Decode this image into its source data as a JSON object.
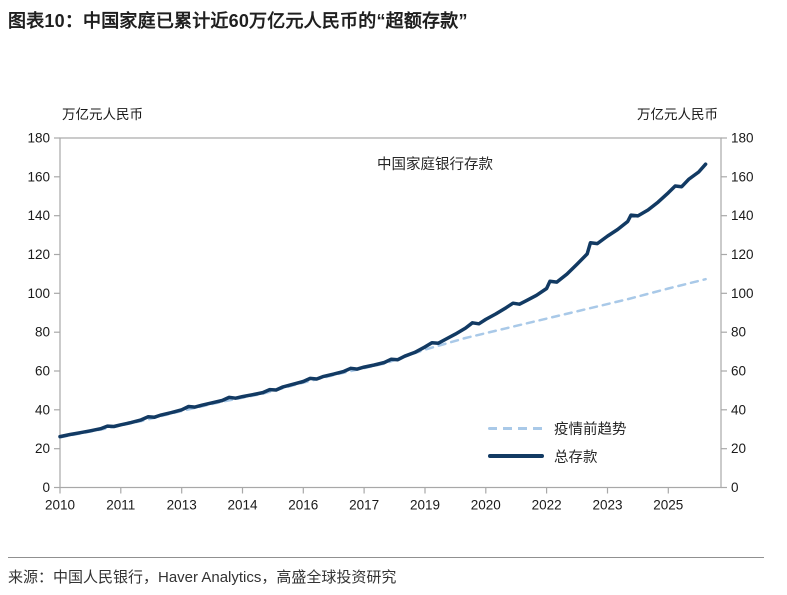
{
  "header": {
    "title": "图表10：中国家庭已累计近60万亿元人民币的“超额存款”"
  },
  "chart_data": {
    "type": "line",
    "title": "图表10：中国家庭已累计近60万亿元人民币的“超额存款”",
    "left_axis_unit": "万亿元人民币",
    "right_axis_unit": "万亿元人民币",
    "annotation": "中国家庭银行存款",
    "axis_color": "#a8a8a8",
    "grid": false,
    "legend_position": "inside-lower-right",
    "ylim": [
      0,
      180
    ],
    "yticks": [
      0,
      20,
      40,
      60,
      80,
      100,
      120,
      140,
      160,
      180
    ],
    "x_range": [
      2010,
      2026.3
    ],
    "xticks": [
      {
        "pos": 2010.0,
        "label": "2010"
      },
      {
        "pos": 2011.5,
        "label": "2011"
      },
      {
        "pos": 2013.0,
        "label": "2013"
      },
      {
        "pos": 2014.5,
        "label": "2014"
      },
      {
        "pos": 2016.0,
        "label": "2016"
      },
      {
        "pos": 2017.5,
        "label": "2017"
      },
      {
        "pos": 2019.0,
        "label": "2019"
      },
      {
        "pos": 2020.5,
        "label": "2020"
      },
      {
        "pos": 2022.0,
        "label": "2022"
      },
      {
        "pos": 2023.5,
        "label": "2023"
      },
      {
        "pos": 2025.0,
        "label": "2025"
      }
    ],
    "series": [
      {
        "name": "疫情前趋势",
        "style": "dashed",
        "color": "#a9c9e8",
        "width": 2.5,
        "points": [
          [
            2010.0,
            25.8
          ],
          [
            2011.0,
            29.8
          ],
          [
            2012.0,
            34.2
          ],
          [
            2013.0,
            39.4
          ],
          [
            2014.0,
            44.2
          ],
          [
            2015.0,
            48.3
          ],
          [
            2016.0,
            54.0
          ],
          [
            2017.0,
            59.2
          ],
          [
            2018.0,
            63.8
          ],
          [
            2019.0,
            71.0
          ],
          [
            2020.0,
            77.0
          ],
          [
            2021.0,
            82.0
          ],
          [
            2022.0,
            87.0
          ],
          [
            2023.0,
            92.0
          ],
          [
            2024.0,
            97.0
          ],
          [
            2025.0,
            102.5
          ],
          [
            2025.92,
            107.3
          ]
        ]
      },
      {
        "name": "总存款",
        "style": "solid",
        "color": "#123a63",
        "width": 3.5,
        "points": [
          [
            2010.0,
            26.2
          ],
          [
            2010.25,
            27.3
          ],
          [
            2010.5,
            28.2
          ],
          [
            2010.75,
            29.2
          ],
          [
            2011.0,
            30.3
          ],
          [
            2011.17,
            31.6
          ],
          [
            2011.33,
            31.4
          ],
          [
            2011.5,
            32.3
          ],
          [
            2011.75,
            33.4
          ],
          [
            2012.0,
            34.8
          ],
          [
            2012.17,
            36.4
          ],
          [
            2012.33,
            36.2
          ],
          [
            2012.5,
            37.4
          ],
          [
            2012.75,
            38.6
          ],
          [
            2013.0,
            40.0
          ],
          [
            2013.17,
            41.7
          ],
          [
            2013.33,
            41.4
          ],
          [
            2013.5,
            42.4
          ],
          [
            2013.75,
            43.6
          ],
          [
            2014.0,
            44.8
          ],
          [
            2014.17,
            46.4
          ],
          [
            2014.33,
            46.0
          ],
          [
            2014.5,
            46.8
          ],
          [
            2014.75,
            47.8
          ],
          [
            2015.0,
            48.9
          ],
          [
            2015.17,
            50.4
          ],
          [
            2015.33,
            50.2
          ],
          [
            2015.5,
            51.8
          ],
          [
            2015.75,
            53.2
          ],
          [
            2016.0,
            54.6
          ],
          [
            2016.17,
            56.2
          ],
          [
            2016.33,
            55.9
          ],
          [
            2016.5,
            57.2
          ],
          [
            2016.75,
            58.4
          ],
          [
            2017.0,
            59.8
          ],
          [
            2017.17,
            61.4
          ],
          [
            2017.33,
            61.0
          ],
          [
            2017.5,
            62.0
          ],
          [
            2017.75,
            63.1
          ],
          [
            2018.0,
            64.4
          ],
          [
            2018.17,
            66.1
          ],
          [
            2018.33,
            65.8
          ],
          [
            2018.5,
            67.6
          ],
          [
            2018.75,
            69.6
          ],
          [
            2019.0,
            72.4
          ],
          [
            2019.17,
            74.6
          ],
          [
            2019.33,
            74.3
          ],
          [
            2019.5,
            76.2
          ],
          [
            2019.75,
            79.0
          ],
          [
            2020.0,
            82.1
          ],
          [
            2020.17,
            84.8
          ],
          [
            2020.33,
            84.3
          ],
          [
            2020.5,
            86.6
          ],
          [
            2020.75,
            89.4
          ],
          [
            2021.0,
            92.6
          ],
          [
            2021.17,
            94.9
          ],
          [
            2021.33,
            94.4
          ],
          [
            2021.5,
            96.2
          ],
          [
            2021.75,
            99.0
          ],
          [
            2022.0,
            102.5
          ],
          [
            2022.08,
            106.2
          ],
          [
            2022.25,
            105.8
          ],
          [
            2022.5,
            109.9
          ],
          [
            2022.75,
            115.0
          ],
          [
            2023.0,
            120.3
          ],
          [
            2023.08,
            126.0
          ],
          [
            2023.25,
            125.6
          ],
          [
            2023.5,
            129.5
          ],
          [
            2023.75,
            132.9
          ],
          [
            2024.0,
            137.0
          ],
          [
            2024.08,
            140.3
          ],
          [
            2024.25,
            139.9
          ],
          [
            2024.5,
            142.9
          ],
          [
            2024.75,
            147.0
          ],
          [
            2025.0,
            151.8
          ],
          [
            2025.17,
            155.3
          ],
          [
            2025.33,
            154.9
          ],
          [
            2025.5,
            158.7
          ],
          [
            2025.75,
            162.5
          ],
          [
            2025.92,
            166.5
          ]
        ]
      }
    ]
  },
  "footer": {
    "source": "来源：中国人民银行，Haver Analytics，高盛全球投资研究"
  }
}
